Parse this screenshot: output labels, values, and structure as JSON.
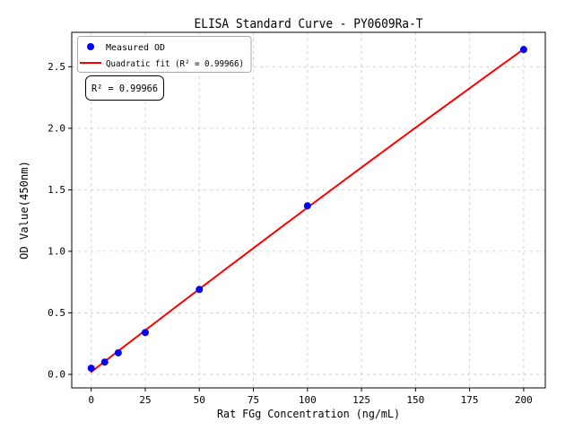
{
  "chart_data": {
    "type": "scatter",
    "title": "ELISA Standard Curve - PY0609Ra-T",
    "xlabel": "Rat FGg Concentration (ng/mL)",
    "ylabel": "OD Value(450nm)",
    "x_ticks": [
      "0",
      "25",
      "50",
      "75",
      "100",
      "125",
      "150",
      "175",
      "200"
    ],
    "y_ticks": [
      "0.0",
      "0.5",
      "1.0",
      "1.5",
      "2.0",
      "2.5"
    ],
    "xlim": [
      -9,
      210
    ],
    "ylim": [
      -0.11,
      2.78
    ],
    "grid": true,
    "legend_position": "upper left",
    "series": [
      {
        "name": "Measured OD",
        "kind": "scatter",
        "color": "#0000ff",
        "x": [
          0,
          6.25,
          12.5,
          25,
          50,
          100,
          200
        ],
        "y": [
          0.05,
          0.1,
          0.175,
          0.34,
          0.69,
          1.37,
          2.64
        ]
      },
      {
        "name": "Quadratic fit (R² = 0.99966)",
        "kind": "line",
        "fit": "quadratic",
        "color": "#ff0000",
        "r_squared": 0.99966
      }
    ],
    "annotation": "R² = 0.99966",
    "grid_color": "#c8c8c8",
    "frame_color": "#000000"
  }
}
